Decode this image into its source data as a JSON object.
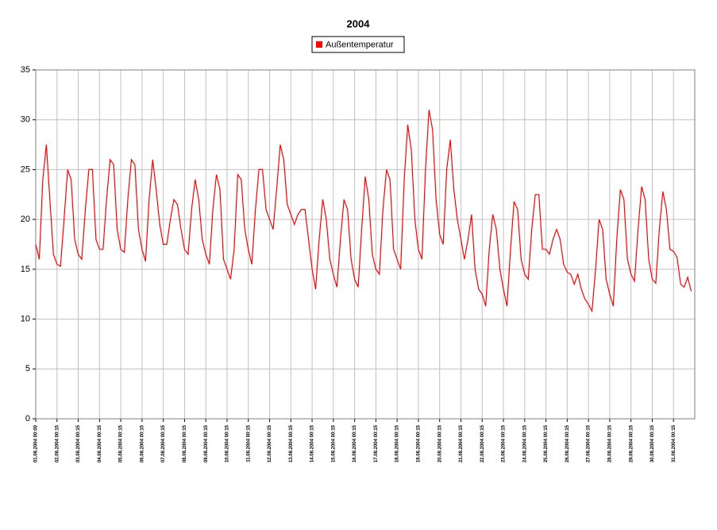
{
  "chart_data": {
    "type": "line",
    "title": "2004",
    "categories": [
      "01.08.2004 00:00",
      null,
      null,
      null,
      null,
      null,
      "02.08.2004 00:15",
      null,
      null,
      null,
      null,
      null,
      "03.08.2004 00:15",
      null,
      null,
      null,
      null,
      null,
      "04.08.2004 00:15",
      null,
      null,
      null,
      null,
      null,
      "05.08.2004 00:15",
      null,
      null,
      null,
      null,
      null,
      "06.08.2004 00:15",
      null,
      null,
      null,
      null,
      null,
      "07.08.2004 00:15",
      null,
      null,
      null,
      null,
      null,
      "08.08.2004 00:15",
      null,
      null,
      null,
      null,
      null,
      "09.08.2004 00:15",
      null,
      null,
      null,
      null,
      null,
      "10.08.2004 00:15",
      null,
      null,
      null,
      null,
      null,
      "11.08.2004 00:15",
      null,
      null,
      null,
      null,
      null,
      "12.08.2004 00:15",
      null,
      null,
      null,
      null,
      null,
      "13.08.2004 00:15",
      null,
      null,
      null,
      null,
      null,
      "14.08.2004 00:15",
      null,
      null,
      null,
      null,
      null,
      "15.08.2004 00:15",
      null,
      null,
      null,
      null,
      null,
      "16.08.2004 00:15",
      null,
      null,
      null,
      null,
      null,
      "17.08.2004 00:15",
      null,
      null,
      null,
      null,
      null,
      "18.08.2004 00:15",
      null,
      null,
      null,
      null,
      null,
      "19.08.2004 00:15",
      null,
      null,
      null,
      null,
      null,
      "20.08.2004 00:15",
      null,
      null,
      null,
      null,
      null,
      "21.08.2004 00:15",
      null,
      null,
      null,
      null,
      null,
      "22.08.2004 00:15",
      null,
      null,
      null,
      null,
      null,
      "23.08.2004 00:15",
      null,
      null,
      null,
      null,
      null,
      "24.08.2004 00:15",
      null,
      null,
      null,
      null,
      null,
      "25.08.2004 00:15",
      null,
      null,
      null,
      null,
      null,
      "26.08.2004 00:15",
      null,
      null,
      null,
      null,
      null,
      "27.08.2004 00:15",
      null,
      null,
      null,
      null,
      null,
      "28.08.2004 00:15",
      null,
      null,
      null,
      null,
      null,
      "29.08.2004 00:15",
      null,
      null,
      null,
      null,
      null,
      "30.08.2004 00:15",
      null,
      null,
      null,
      null,
      null,
      "31.08.2004 00:15",
      null,
      null,
      null,
      null,
      null
    ],
    "series": [
      {
        "name": "Außentemperatur",
        "color": "#ff0000",
        "values": [
          17.5,
          16,
          24,
          27.5,
          22,
          16.5,
          15.5,
          15.3,
          20,
          25,
          24,
          18,
          16.5,
          16,
          21,
          25,
          25,
          18,
          17,
          17,
          22,
          26,
          25.5,
          19,
          17,
          16.7,
          22,
          26,
          25.5,
          19,
          17,
          15.8,
          22,
          26,
          23,
          19.5,
          17.5,
          17.5,
          20,
          22,
          21.5,
          19,
          17,
          16.5,
          21,
          24,
          22,
          18,
          16.5,
          15.5,
          21,
          24.5,
          23,
          16,
          15,
          14,
          17,
          24.5,
          24,
          19,
          17,
          15.5,
          21,
          25,
          25,
          21,
          20,
          19,
          23,
          27.5,
          26,
          21.5,
          20.5,
          19.5,
          20.5,
          21,
          21,
          18,
          15,
          13,
          18,
          22,
          20,
          16,
          14.5,
          13.2,
          18,
          22,
          21,
          16,
          14,
          13.2,
          19,
          24.3,
          22,
          16.5,
          15,
          14.5,
          21,
          25,
          24,
          17,
          16,
          15,
          24,
          29.5,
          27,
          20,
          17,
          16,
          25,
          31,
          29,
          22,
          18.5,
          17.5,
          25,
          28,
          23,
          20,
          18,
          16,
          18,
          20.5,
          15,
          13,
          12.5,
          11.3,
          17,
          20.5,
          19,
          15,
          13,
          11.3,
          17,
          21.8,
          21,
          16,
          14.5,
          14,
          19,
          22.5,
          22.5,
          17,
          17,
          16.5,
          18,
          19,
          18,
          15.5,
          14.7,
          14.5,
          13.5,
          14.5,
          13,
          12,
          11.5,
          10.8,
          15,
          20,
          19,
          14,
          12.5,
          11.3,
          18,
          23,
          22,
          16,
          14.5,
          13.8,
          19,
          23.3,
          22,
          16,
          14,
          13.6,
          19,
          22.8,
          21,
          17,
          16.8,
          16.2,
          13.5,
          13.2,
          14.2,
          12.8
        ]
      }
    ],
    "ylim": [
      0,
      35
    ],
    "yticks": [
      0,
      5,
      10,
      15,
      20,
      25,
      30,
      35
    ],
    "grid": true,
    "legend": "top"
  }
}
